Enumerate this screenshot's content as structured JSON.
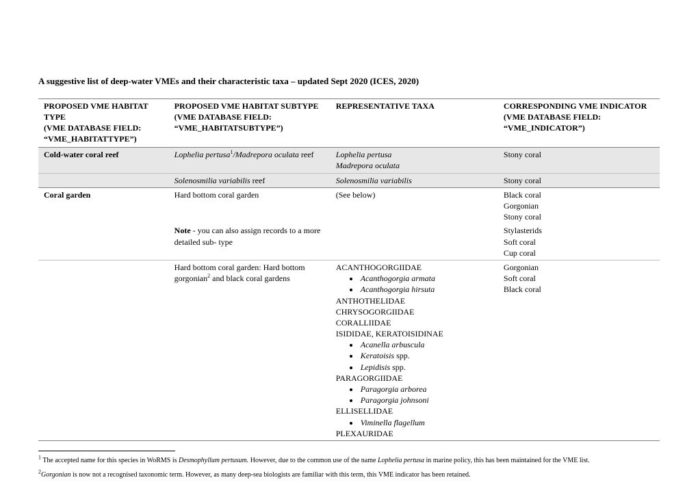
{
  "title": "A suggestive list of deep-water VMEs and their characteristic taxa – updated Sept 2020 (ICES, 2020)",
  "headers": {
    "c1l1": "PROPOSED VME HABITAT TYPE",
    "c1l2": "(VME DATABASE FIELD: “VME_HABITATTYPE”)",
    "c2l1": "PROPOSED VME HABITAT SUBTYPE",
    "c2l2": "(VME DATABASE FIELD:  “VME_HABITATSUBTYPE”)",
    "c3": "REPRESENTATIVE TAXA",
    "c4l1": "CORRESPONDING VME INDICATOR",
    "c4l2": "(VME DATABASE FIELD: “VME_INDICATOR”)"
  },
  "row1": {
    "type": "Cold-water coral reef",
    "subtype_a": "Lophelia pertusa",
    "subtype_sup": "1",
    "subtype_b": "/",
    "subtype_c": "Madrepora oculata",
    "subtype_d": " reef",
    "taxa1": "Lophelia pertusa",
    "taxa2": "Madrepora oculata",
    "ind": "Stony coral"
  },
  "row2": {
    "subtype_i": "Solenosmilia variabilis",
    "subtype_rest": " reef",
    "taxa": "Solenosmilia variabilis",
    "ind": "Stony coral"
  },
  "row3": {
    "type": "Coral garden",
    "subtype": "Hard bottom coral garden",
    "taxa": "(See below)",
    "ind1": "Black coral",
    "ind2": "Gorgonian",
    "ind3": "Stony coral"
  },
  "row3b": {
    "note_b": "Note",
    "note_rest": " - you can also assign records to a more detailed sub- type",
    "ind4": "Stylasterids",
    "ind5": "Soft coral",
    "ind6": "Cup coral"
  },
  "row4": {
    "subtype_a": "Hard bottom coral garden: Hard bottom gorgonian",
    "subtype_sup": "2",
    "subtype_b": " and black coral gardens",
    "fam1": "ACANTHOGORGIIDAE",
    "sp1": "Acanthogorgia armata",
    "sp2": "Acanthogorgia hirsuta",
    "fam2": "ANTHOTHELIDAE",
    "fam3": "CHRYSOGORGIIDAE",
    "fam4": "CORALLIIDAE",
    "fam5": "ISIDIDAE, KERATOISIDINAE",
    "sp3": "Acanella arbuscula",
    "sp4a": "Keratoisis",
    "sp4b": " spp.",
    "sp5a": "Lepidisis",
    "sp5b": " spp.",
    "fam6": "PARAGORGIIDAE",
    "sp6": "Paragorgia arborea",
    "sp7": "Paragorgia johnsoni",
    "fam7": "ELLISELLIDAE",
    "sp8": "Viminella flagellum",
    "fam8": "PLEXAURIDAE",
    "ind1": "Gorgonian",
    "ind2": "Soft coral",
    "ind3": "Black coral"
  },
  "foot1": {
    "sup": "1",
    "a": " The accepted name for this species in WoRMS is ",
    "i1": "Desmophyllum pertusum.",
    "b": " However, due to the common use of the name ",
    "i2": "Lophelia pertusa",
    "c": " in marine policy, this has been maintained for the VME list."
  },
  "foot2": {
    "sup": "2",
    "i": "Gorgonian",
    "rest": " is now not a recognised taxonomic term.  However, as many deep-sea biologists are familiar with this term, this VME indicator has been retained."
  }
}
